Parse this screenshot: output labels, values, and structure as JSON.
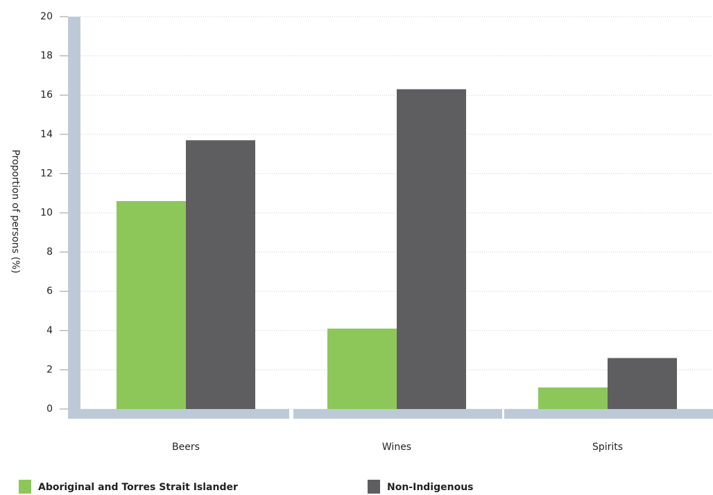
{
  "chart_data": {
    "type": "bar",
    "y_label": "Proportion of persons (%)",
    "categories": [
      "Beers",
      "Wines",
      "Spirits"
    ],
    "series": [
      {
        "name": "Aboriginal and Torres Strait Islander",
        "color": "#8dc75a",
        "values": [
          10.6,
          4.1,
          1.1
        ]
      },
      {
        "name": "Non-Indigenous",
        "color": "#5e5d60",
        "values": [
          13.7,
          16.3,
          2.6
        ]
      }
    ],
    "ylim": [
      0,
      20
    ],
    "yticks": [
      0,
      2,
      4,
      6,
      8,
      10,
      12,
      14,
      16,
      18,
      20
    ],
    "grid": true
  }
}
